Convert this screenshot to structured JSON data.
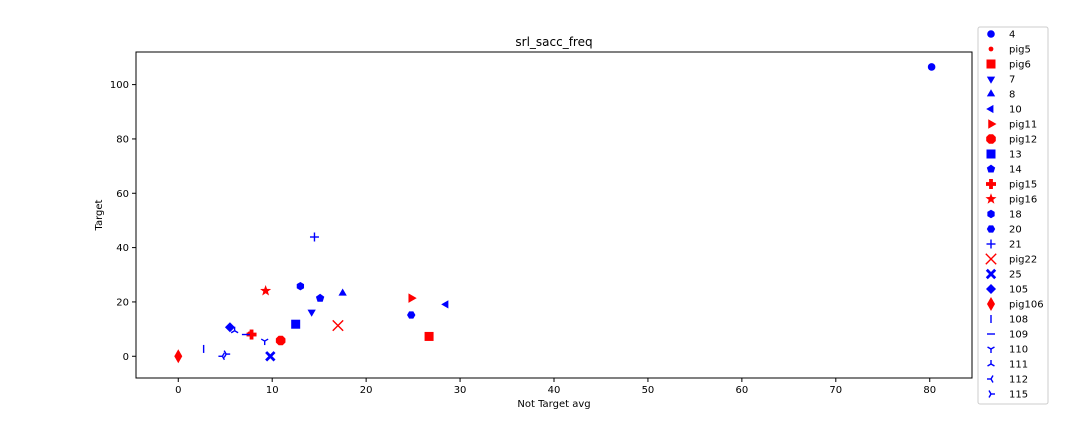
{
  "chart_data": {
    "type": "scatter",
    "title": "srl_sacc_freq",
    "xlabel": "Not Target avg",
    "ylabel": "Target",
    "xlim": [
      -4.5,
      84.5
    ],
    "ylim": [
      -8,
      112
    ],
    "xticks": [
      0,
      10,
      20,
      30,
      40,
      50,
      60,
      70,
      80
    ],
    "yticks": [
      0,
      20,
      40,
      60,
      80,
      100
    ],
    "grid": false,
    "legend_position": "outside-right",
    "series": [
      {
        "name": "4",
        "marker": "circle",
        "color": "#0000ff",
        "x": 80.2,
        "y": 106.5
      },
      {
        "name": "pig5",
        "marker": "point",
        "color": "#ff0000",
        "x": 7.6,
        "y": 8.3
      },
      {
        "name": "pig6",
        "marker": "square",
        "color": "#ff0000",
        "x": 26.7,
        "y": 7.3
      },
      {
        "name": "7",
        "marker": "triangle-down",
        "color": "#0000ff",
        "x": 14.2,
        "y": 16.3
      },
      {
        "name": "8",
        "marker": "triangle-up",
        "color": "#0000ff",
        "x": 17.5,
        "y": 23.2
      },
      {
        "name": "10",
        "marker": "triangle-left",
        "color": "#0000ff",
        "x": 28.5,
        "y": 19.1
      },
      {
        "name": "pig11",
        "marker": "triangle-right",
        "color": "#ff0000",
        "x": 24.8,
        "y": 21.4
      },
      {
        "name": "pig12",
        "marker": "octagon",
        "color": "#ff0000",
        "x": 10.9,
        "y": 5.8
      },
      {
        "name": "13",
        "marker": "square",
        "color": "#0000ff",
        "x": 12.5,
        "y": 11.8
      },
      {
        "name": "14",
        "marker": "pentagon",
        "color": "#0000ff",
        "x": 15.1,
        "y": 21.4
      },
      {
        "name": "pig15",
        "marker": "plus-filled",
        "color": "#ff0000",
        "x": 7.8,
        "y": 8.0
      },
      {
        "name": "pig16",
        "marker": "star",
        "color": "#ff0000",
        "x": 9.3,
        "y": 24.1
      },
      {
        "name": "18",
        "marker": "hexagon",
        "color": "#0000ff",
        "x": 13.0,
        "y": 25.8
      },
      {
        "name": "20",
        "marker": "hexagon2",
        "color": "#0000ff",
        "x": 24.8,
        "y": 15.2
      },
      {
        "name": "21",
        "marker": "plus",
        "color": "#0000ff",
        "x": 14.5,
        "y": 43.9
      },
      {
        "name": "pig22",
        "marker": "x",
        "color": "#ff0000",
        "x": 17.0,
        "y": 11.3
      },
      {
        "name": "25",
        "marker": "x-filled",
        "color": "#0000ff",
        "x": 9.8,
        "y": 0.0
      },
      {
        "name": "105",
        "marker": "diamond",
        "color": "#0000ff",
        "x": 5.5,
        "y": 10.7
      },
      {
        "name": "pig106",
        "marker": "thin-diamond",
        "color": "#ff0000",
        "x": 0.0,
        "y": 0.0
      },
      {
        "name": "108",
        "marker": "vline",
        "color": "#0000ff",
        "x": 2.7,
        "y": 2.7
      },
      {
        "name": "109",
        "marker": "hline",
        "color": "#0000ff",
        "x": 7.2,
        "y": 8.0
      },
      {
        "name": "110",
        "marker": "tri-down",
        "color": "#0000ff",
        "x": 9.2,
        "y": 5.6
      },
      {
        "name": "111",
        "marker": "tri-up",
        "color": "#0000ff",
        "x": 6.0,
        "y": 9.4
      },
      {
        "name": "112",
        "marker": "tri-left",
        "color": "#0000ff",
        "x": 4.7,
        "y": 0.0
      },
      {
        "name": "115",
        "marker": "tri-right",
        "color": "#0000ff",
        "x": 5.1,
        "y": 0.8
      }
    ]
  }
}
